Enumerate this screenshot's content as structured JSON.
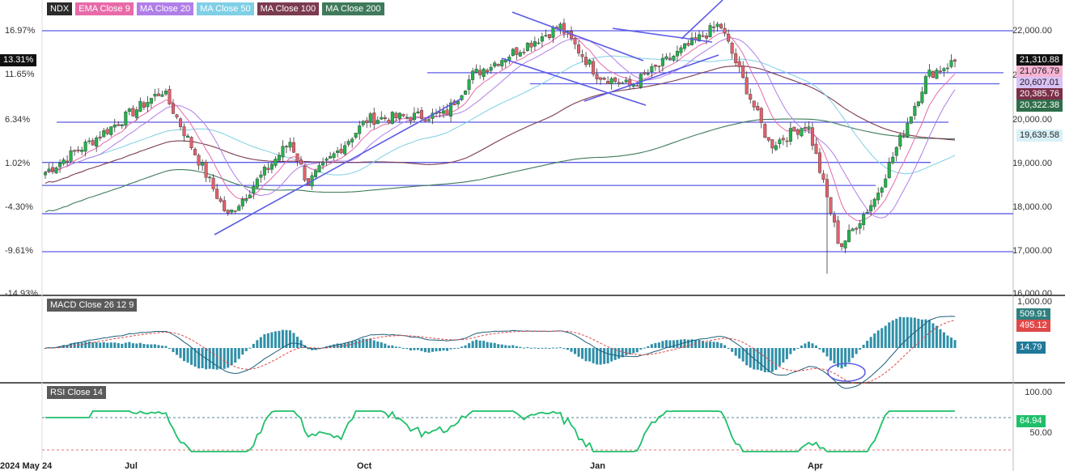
{
  "legend": [
    {
      "label": "NDX",
      "color": "#2b2b2b"
    },
    {
      "label": "EMA Close 9",
      "color": "#e86aa8"
    },
    {
      "label": "MA Close 20",
      "color": "#b07ee8"
    },
    {
      "label": "MA Close 50",
      "color": "#7fcfe6"
    },
    {
      "label": "MA Close 100",
      "color": "#7b3b4f"
    },
    {
      "label": "MA Close 200",
      "color": "#3f7a5a"
    }
  ],
  "panels": {
    "macd_label": "MACD Close 26 12 9",
    "rsi_label": "RSI Close 14"
  },
  "price_axis_labels": [
    "22,000.00",
    "21,000.00",
    "20,000.00",
    "19,000.00",
    "18,000.00",
    "17,000.00",
    "16,000.00"
  ],
  "pct_axis_labels": [
    "16.97%",
    "11.65%",
    "6.34%",
    "1.02%",
    "-4.30%",
    "-9.61%",
    "-14.93%"
  ],
  "current_pct_badge": "13.31%",
  "price_badges": [
    {
      "text": "21,310.88",
      "bg": "#111111",
      "fg": "#ffffff"
    },
    {
      "text": "21,076.79",
      "bg": "#f6b3d3",
      "fg": "#222222"
    },
    {
      "text": "20,607.01",
      "bg": "#d9c2f5",
      "fg": "#222222"
    },
    {
      "text": "20,385.76",
      "bg": "#7b2f48",
      "fg": "#ffffff"
    },
    {
      "text": "20,322.38",
      "bg": "#2f6e4a",
      "fg": "#ffffff"
    },
    {
      "text": "19,639.58",
      "bg": "#d8f1f8",
      "fg": "#222222"
    }
  ],
  "macd_axis_labels": [
    "1,000.00"
  ],
  "macd_badges": [
    {
      "text": "509.91",
      "bg": "#2f7f7f",
      "fg": "#ffffff"
    },
    {
      "text": "495.12",
      "bg": "#e04848",
      "fg": "#ffffff"
    },
    {
      "text": "14.79",
      "bg": "#1f7a9a",
      "fg": "#ffffff"
    }
  ],
  "rsi_axis_labels": [
    "100.00",
    "50.00"
  ],
  "rsi_badge": {
    "text": "64.94",
    "bg": "#1fbf6a",
    "fg": "#ffffff"
  },
  "date_labels": [
    "2024 May 24",
    "Jul",
    "Oct",
    "Jan",
    "Apr"
  ],
  "chart_data": {
    "type": "candlestick",
    "symbol": "NDX",
    "price_range": [
      16000,
      22500
    ],
    "x_range": [
      "2024-05-24",
      "2025-05-23"
    ],
    "x_ticks": [
      "Jul",
      "Oct",
      "Jan",
      "Apr"
    ],
    "ohlc_approx": [
      {
        "date": "2024-05-24",
        "close": 18800
      },
      {
        "date": "2024-06-14",
        "close": 19600
      },
      {
        "date": "2024-07-10",
        "close": 20650
      },
      {
        "date": "2024-07-25",
        "close": 19000
      },
      {
        "date": "2024-08-05",
        "close": 17800
      },
      {
        "date": "2024-08-30",
        "close": 19500
      },
      {
        "date": "2024-09-06",
        "close": 18550
      },
      {
        "date": "2024-09-30",
        "close": 20000
      },
      {
        "date": "2024-10-31",
        "close": 20100
      },
      {
        "date": "2024-11-11",
        "close": 21000
      },
      {
        "date": "2024-12-16",
        "close": 22100
      },
      {
        "date": "2024-12-31",
        "close": 21000
      },
      {
        "date": "2025-01-13",
        "close": 20750
      },
      {
        "date": "2025-02-18",
        "close": 22150
      },
      {
        "date": "2025-03-10",
        "close": 19400
      },
      {
        "date": "2025-03-25",
        "close": 19900
      },
      {
        "date": "2025-04-07",
        "close": 17100
      },
      {
        "date": "2025-04-21",
        "close": 18200
      },
      {
        "date": "2025-05-12",
        "close": 21000
      },
      {
        "date": "2025-05-23",
        "close": 21310.88
      }
    ],
    "horizontal_levels": [
      22000,
      21050,
      20800,
      19930,
      19020,
      18500,
      17860,
      17000
    ],
    "trendlines_note": "drawn channel and support lines",
    "indicators": {
      "ema9_last": 21076.79,
      "ma20_last": 20607.01,
      "ma50_last": 19639.58,
      "ma100_last": 20385.76,
      "ma200_last": 20322.38,
      "macd_last": 509.91,
      "macd_signal_last": 495.12,
      "macd_hist_last": 14.79,
      "rsi_last": 64.94
    },
    "colors": {
      "up": "#23b24b",
      "down": "#e2606a",
      "trend": "#5c5ce6",
      "ema9": "#e86aa8",
      "ma20": "#b07ee8",
      "ma50": "#7fcfe6",
      "ma100": "#7b3b4f",
      "ma200": "#3f7a5a",
      "rsi": "#1fbf6a",
      "macd": "#1f5f7a",
      "signal": "#e04848",
      "hist": "#2f8fa8"
    }
  }
}
